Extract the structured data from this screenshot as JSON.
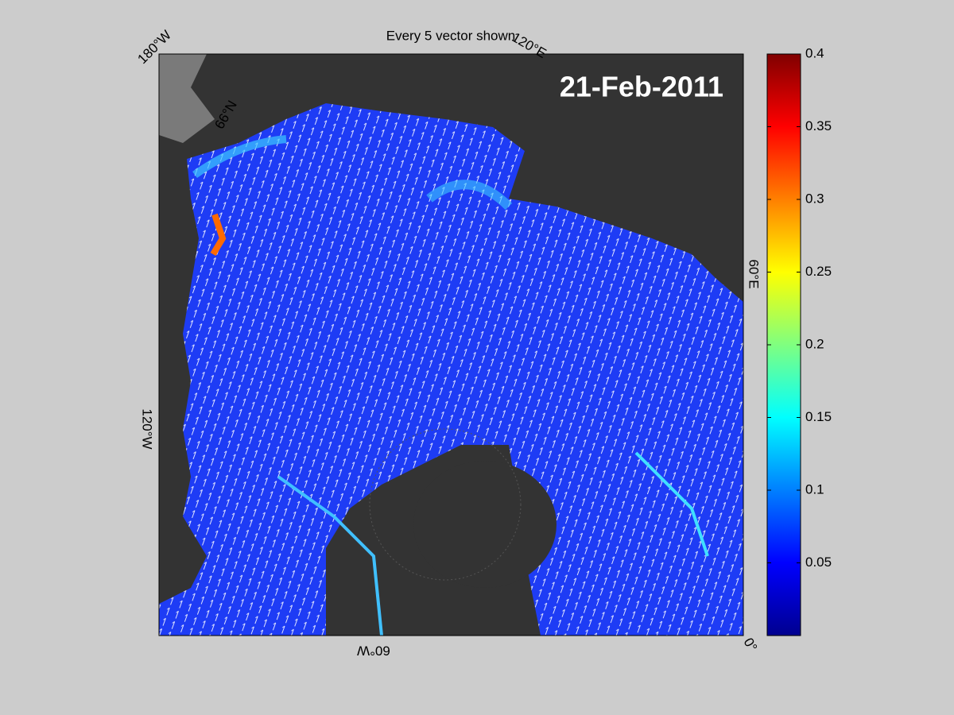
{
  "title": "Every 5 vector shown",
  "date": "21-Feb-2011",
  "lon_labels": [
    "180°W",
    "120°E",
    "60°E",
    "0°",
    "60°W",
    "120°W"
  ],
  "lat_labels": [
    "66°N"
  ],
  "colorbar": {
    "lim": [
      0,
      0.4
    ],
    "ticks": [
      0.05,
      0.1,
      0.15,
      0.2,
      0.25,
      0.3,
      0.35,
      0.4
    ]
  }
}
